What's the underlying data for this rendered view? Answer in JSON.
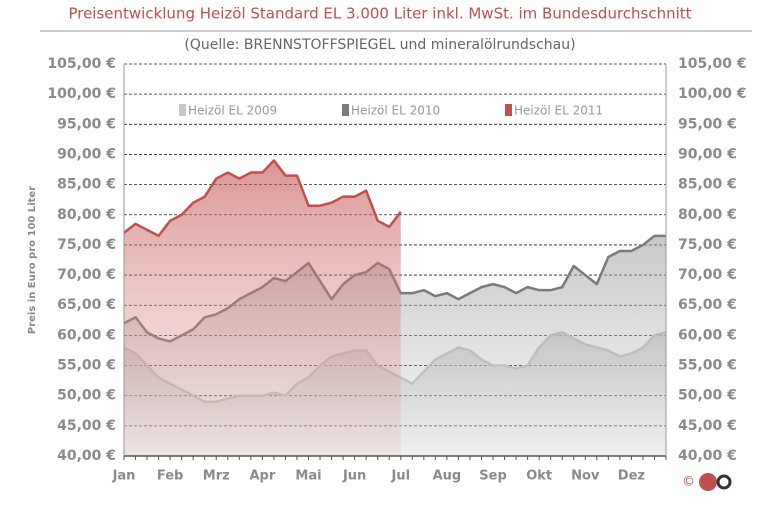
{
  "chart_data": {
    "type": "area",
    "title": "Preisentwicklung Heizöl Standard EL 3.000 Liter inkl. MwSt. im Bundesdurchschnitt",
    "subtitle": "(Quelle: BRENNSTOFFSPIEGEL  und mineralölrundschau)",
    "y_label": "Preis in Euro pro 100 Liter",
    "copyright": "©",
    "categories": [
      "Jan",
      null,
      null,
      null,
      "Feb",
      null,
      null,
      null,
      "Mrz",
      null,
      null,
      null,
      "Apr",
      null,
      null,
      null,
      "Mai",
      null,
      null,
      null,
      "Jun",
      null,
      null,
      null,
      "Jul",
      null,
      null,
      null,
      "Aug",
      null,
      null,
      null,
      "Sep",
      null,
      null,
      null,
      "Okt",
      null,
      null,
      null,
      "Nov",
      null,
      null,
      null,
      "Dez",
      null,
      null,
      null
    ],
    "series": [
      {
        "name": "Heizöl EL 2009",
        "color": "#c8c8c8",
        "values": [
          58,
          57,
          55,
          53,
          52,
          51,
          50,
          49,
          49,
          49.5,
          50,
          50,
          50,
          50.5,
          50,
          52,
          53,
          55,
          56.5,
          57,
          57.5,
          57.5,
          55,
          54,
          53,
          52,
          54,
          56,
          57,
          58,
          57.5,
          56,
          55,
          55,
          54.5,
          55,
          58,
          60,
          60.5,
          59.5,
          58.5,
          58,
          57.5,
          56.5,
          57,
          58,
          60,
          60.5
        ]
      },
      {
        "name": "Heizöl EL 2010",
        "color": "#7a7a7a",
        "values": [
          62,
          63,
          60.5,
          59.5,
          59,
          60,
          61,
          63,
          63.5,
          64.5,
          66,
          67,
          68,
          69.5,
          69,
          70.5,
          72,
          69,
          66,
          68.5,
          70,
          70.5,
          72,
          71,
          67,
          67,
          67.5,
          66.5,
          67,
          66,
          67,
          68,
          68.5,
          68,
          67,
          68,
          67.5,
          67.5,
          68,
          71.5,
          70,
          68.5,
          73,
          74,
          74,
          75,
          76.5,
          76.5
        ]
      },
      {
        "name": "Heizöl EL 2011",
        "color": "#c0504d",
        "values": [
          77,
          78.5,
          77.5,
          76.5,
          79,
          80,
          82,
          83,
          86,
          87,
          86,
          87,
          87,
          89,
          86.5,
          86.5,
          81.5,
          81.5,
          82,
          83,
          83,
          84,
          79,
          78,
          80.5,
          null,
          null,
          null,
          null,
          null,
          null,
          null,
          null,
          null,
          null,
          null,
          null,
          null,
          null,
          null,
          null,
          null,
          null,
          null,
          null,
          null,
          null,
          null
        ]
      }
    ],
    "ylim": [
      40,
      105
    ],
    "yticks": [
      {
        "value": 40,
        "label": "40,00 €"
      },
      {
        "value": 45,
        "label": "45,00 €"
      },
      {
        "value": 50,
        "label": "50,00 €"
      },
      {
        "value": 55,
        "label": "55,00 €"
      },
      {
        "value": 60,
        "label": "60,00 €"
      },
      {
        "value": 65,
        "label": "65,00 €"
      },
      {
        "value": 70,
        "label": "70,00 €"
      },
      {
        "value": 75,
        "label": "75,00 €"
      },
      {
        "value": 80,
        "label": "80,00 €"
      },
      {
        "value": 85,
        "label": "85,00 €"
      },
      {
        "value": 90,
        "label": "90,00 €"
      },
      {
        "value": 95,
        "label": "95,00 €"
      },
      {
        "value": 100,
        "label": "100,00 €"
      },
      {
        "value": 105,
        "label": "105,00 €"
      }
    ],
    "grid": true
  }
}
